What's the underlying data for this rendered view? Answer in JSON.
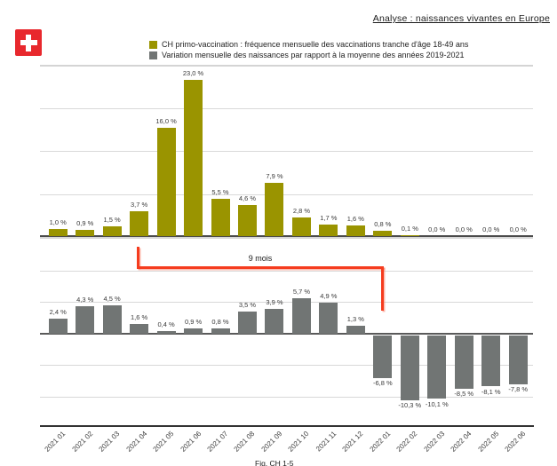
{
  "header": {
    "title": "Analyse : naissances vivantes en Europe",
    "flag_color": "#e8282d"
  },
  "legend": {
    "items": [
      {
        "label": "CH primo-vaccination : fréquence mensuelle des vaccinations tranche d'âge 18-49 ans",
        "color": "#9a9400"
      },
      {
        "label": "Variation mensuelle des naissances par rapport à la moyenne des années 2019-2021",
        "color": "#717574"
      }
    ]
  },
  "annotation": {
    "label": "9 mois",
    "color": "#f53c1e",
    "from_category": "2021 04",
    "to_category": "2022 01"
  },
  "caption": "Fig. CH 1-5",
  "chart_data": [
    {
      "type": "bar",
      "title": "CH primo-vaccination : fréquence mensuelle des vaccinations tranche d'âge 18-49 ans",
      "categories": [
        "2021 01",
        "2021 02",
        "2021 03",
        "2021 04",
        "2021 05",
        "2021 06",
        "2021 07",
        "2021 08",
        "2021 09",
        "2021 10",
        "2021 11",
        "2021 12",
        "2022 01",
        "2022 02",
        "2022 03",
        "2022 04",
        "2022 05",
        "2022 06"
      ],
      "values": [
        1.0,
        0.9,
        1.5,
        3.7,
        16.0,
        23.0,
        5.5,
        4.6,
        7.9,
        2.8,
        1.7,
        1.6,
        0.8,
        0.1,
        0.0,
        0.0,
        0.0,
        0.0
      ],
      "labels": [
        "1,0 %",
        "0,9 %",
        "1,5 %",
        "3,7 %",
        "16,0 %",
        "23,0 %",
        "5,5 %",
        "4,6 %",
        "7,9 %",
        "2,8 %",
        "1,7 %",
        "1,6 %",
        "0,8 %",
        "0,1 %",
        "0,0 %",
        "0,0 %",
        "0,0 %",
        "0,0 %"
      ],
      "color": "#9a9400",
      "xlabel": "",
      "ylabel": "",
      "ylim": [
        0,
        25
      ],
      "grid": true,
      "legend_position": "top"
    },
    {
      "type": "bar",
      "title": "Variation mensuelle des naissances par rapport à la moyenne des années 2019-2021",
      "categories": [
        "2021 01",
        "2021 02",
        "2021 03",
        "2021 04",
        "2021 05",
        "2021 06",
        "2021 07",
        "2021 08",
        "2021 09",
        "2021 10",
        "2021 11",
        "2021 12",
        "2022 01",
        "2022 02",
        "2022 03",
        "2022 04",
        "2022 05",
        "2022 06"
      ],
      "values": [
        2.4,
        4.3,
        4.5,
        1.6,
        0.4,
        0.9,
        0.8,
        3.5,
        3.9,
        5.7,
        4.9,
        1.3,
        -6.8,
        -10.3,
        -10.1,
        -8.5,
        -8.1,
        -7.8
      ],
      "labels": [
        "2,4 %",
        "4,3 %",
        "4,5 %",
        "1,6 %",
        "0,4 %",
        "0,9 %",
        "0,8 %",
        "3,5 %",
        "3,9 %",
        "5,7 %",
        "4,9 %",
        "1,3 %",
        "-6,8 %",
        "-10,3 %",
        "-10,1 %",
        "-8,5 %",
        "-8,1 %",
        "-7,8 %"
      ],
      "color": "#717574",
      "xlabel": "",
      "ylabel": "",
      "ylim": [
        -12,
        10
      ],
      "grid": true,
      "legend_position": "top"
    }
  ]
}
